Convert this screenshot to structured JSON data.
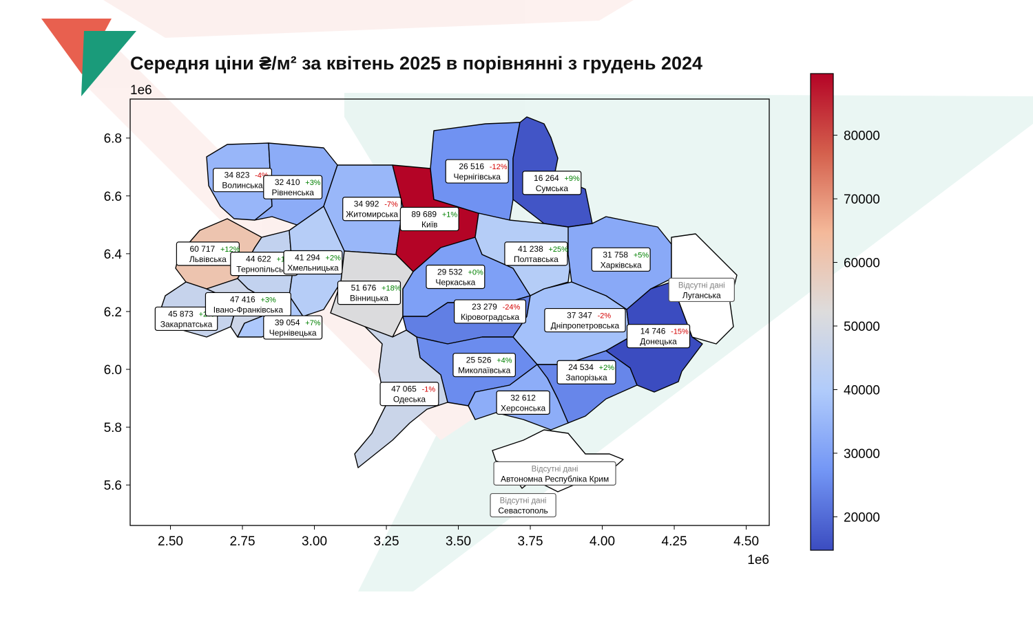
{
  "chart_data": {
    "type": "choropleth-map",
    "title": "Середня ціни ₴/м² за квітень  2025  в порівнянні з  грудень  2024",
    "x_axis": {
      "range": [
        2360000,
        4580000
      ],
      "ticks": [
        "2.50",
        "2.75",
        "3.00",
        "3.25",
        "3.50",
        "3.75",
        "4.00",
        "4.25",
        "4.50"
      ],
      "tick_values": [
        2500000,
        2750000,
        3000000,
        3250000,
        3500000,
        3750000,
        4000000,
        4250000,
        4500000
      ],
      "offset_label": "1e6"
    },
    "y_axis": {
      "range": [
        5460000,
        6935000
      ],
      "ticks": [
        "5.6",
        "5.8",
        "6.0",
        "6.2",
        "6.4",
        "6.6",
        "6.8"
      ],
      "tick_values": [
        5600000,
        5800000,
        6000000,
        6200000,
        6400000,
        6600000,
        6800000
      ],
      "offset_label": "1e6"
    },
    "colorbar": {
      "min": 14746,
      "max": 89689,
      "ticks": [
        "20000",
        "30000",
        "40000",
        "50000",
        "60000",
        "70000",
        "80000"
      ],
      "tick_values": [
        20000,
        30000,
        40000,
        50000,
        60000,
        70000,
        80000
      ],
      "colors": [
        "#3b4cc0",
        "#7396f5",
        "#b0cbfb",
        "#dddcdc",
        "#f4b99a",
        "#d4604d",
        "#b40426"
      ]
    },
    "regions": [
      {
        "name": "Волинська",
        "price": "34 823",
        "change": "-4%",
        "value": 34823,
        "cx": 2750000,
        "cy": 6655000
      },
      {
        "name": "Рівненська",
        "price": "32 410",
        "change": "+3%",
        "value": 32410,
        "cx": 2925000,
        "cy": 6630000
      },
      {
        "name": "Житомирська",
        "price": "34 992",
        "change": "-7%",
        "value": 34992,
        "cx": 3200000,
        "cy": 6555000
      },
      {
        "name": "Київ",
        "price": "89 689",
        "change": "+1%",
        "value": 89689,
        "cx": 3400000,
        "cy": 6520000
      },
      {
        "name": "Чернігівська",
        "price": "26 516",
        "change": "-12%",
        "value": 26516,
        "cx": 3565000,
        "cy": 6685000
      },
      {
        "name": "Сумська",
        "price": "16 264",
        "change": "+9%",
        "value": 16264,
        "cx": 3825000,
        "cy": 6645000
      },
      {
        "name": "Львівська",
        "price": "60 717",
        "change": "+12%",
        "value": 60717,
        "cx": 2630000,
        "cy": 6400000
      },
      {
        "name": "Тернопільська",
        "price": "44 622",
        "change": "+1%",
        "value": 44622,
        "cx": 2825000,
        "cy": 6365000
      },
      {
        "name": "Хмельницька",
        "price": "41 294",
        "change": "+2%",
        "value": 41294,
        "cx": 2995000,
        "cy": 6370000
      },
      {
        "name": "Вінницька",
        "price": "51 676",
        "change": "+18%",
        "value": 51676,
        "cx": 3190000,
        "cy": 6265000
      },
      {
        "name": "Черкаська",
        "price": "29 532",
        "change": "+0%",
        "value": 29532,
        "cx": 3490000,
        "cy": 6320000
      },
      {
        "name": "Полтавська",
        "price": "41 238",
        "change": "+25%",
        "value": 41238,
        "cx": 3770000,
        "cy": 6400000
      },
      {
        "name": "Харківська",
        "price": "31 758",
        "change": "+5%",
        "value": 31758,
        "cx": 4065000,
        "cy": 6380000
      },
      {
        "name": "Луганська",
        "price": "",
        "change": "",
        "value": null,
        "no_data": true,
        "no_data_label": "Відсутні дані",
        "cx": 4345000,
        "cy": 6275000
      },
      {
        "name": "Закарпатська",
        "price": "45 873",
        "change": "+2%",
        "value": 45873,
        "cx": 2555000,
        "cy": 6175000
      },
      {
        "name": "Івано-Франківська",
        "price": "47 416",
        "change": "+3%",
        "value": 47416,
        "cx": 2770000,
        "cy": 6225000
      },
      {
        "name": "Чернівецька",
        "price": "39 054",
        "change": "+7%",
        "value": 39054,
        "cx": 2925000,
        "cy": 6145000
      },
      {
        "name": "Кіровоградська",
        "price": "23 279",
        "change": "-24%",
        "value": 23279,
        "cx": 3610000,
        "cy": 6200000
      },
      {
        "name": "Дніпропетровська",
        "price": "37 347",
        "change": "-2%",
        "value": 37347,
        "cx": 3940000,
        "cy": 6170000
      },
      {
        "name": "Донецька",
        "price": "14 746",
        "change": "-15%",
        "value": 14746,
        "cx": 4195000,
        "cy": 6115000
      },
      {
        "name": "Миколаївська",
        "price": "25 526",
        "change": "+4%",
        "value": 25526,
        "cx": 3590000,
        "cy": 6015000
      },
      {
        "name": "Запорізька",
        "price": "24 534",
        "change": "+2%",
        "value": 24534,
        "cx": 3945000,
        "cy": 5990000
      },
      {
        "name": "Одеська",
        "price": "47 065",
        "change": "-1%",
        "value": 47065,
        "cx": 3330000,
        "cy": 5915000
      },
      {
        "name": "Херсонська",
        "price": "32 612",
        "change": "",
        "value": 32612,
        "cx": 3725000,
        "cy": 5885000
      },
      {
        "name": "Автономна Республіка Крим",
        "price": "",
        "change": "",
        "value": null,
        "no_data": true,
        "no_data_label": "Відсутні дані",
        "cx": 3835000,
        "cy": 5640000
      },
      {
        "name": "Севастополь",
        "price": "",
        "change": "",
        "value": null,
        "no_data": true,
        "no_data_label": "Відсутні дані",
        "cx": 3725000,
        "cy": 5530000
      }
    ]
  },
  "colors": {
    "positive": "#008000",
    "negative": "#d40000",
    "no_data_text": "#7f7f7f",
    "border": "#000000",
    "logo_red": "#e8604f",
    "logo_green": "#1a9b7a"
  }
}
